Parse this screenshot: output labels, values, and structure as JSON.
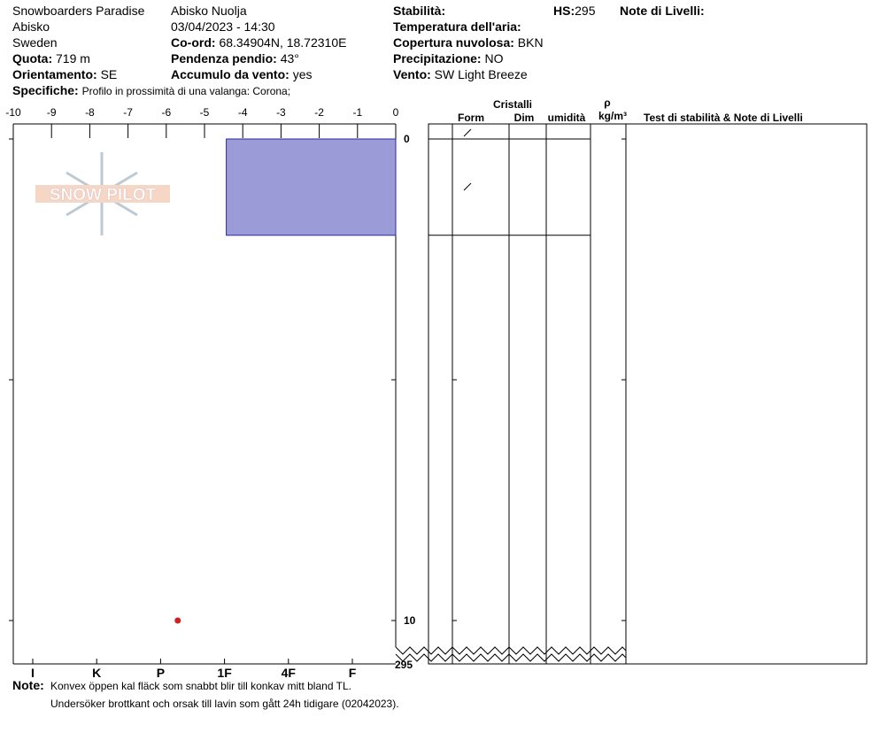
{
  "header": {
    "operation": "Snowboarders Paradise",
    "location": "Abisko",
    "country": "Sweden",
    "site": "Abisko Nuolja",
    "datetime": "03/04/2023 - 14:30",
    "coord": {
      "label": "Co-ord:",
      "value": "68.34904N, 18.72310E"
    },
    "elevation": {
      "label": "Quota:",
      "value": "719 m"
    },
    "slope": {
      "label": "Pendenza pendio:",
      "value": "43°"
    },
    "aspect": {
      "label": "Orientamento:",
      "value": "SE"
    },
    "wind_loading": {
      "label": "Accumulo da vento:",
      "value": "yes"
    },
    "stability": {
      "label": "Stabilità:"
    },
    "hs": {
      "label": "HS:",
      "value": "295"
    },
    "layer_notes": {
      "label": "Note di Livelli:"
    },
    "air_temp": {
      "label": "Temperatura dell'aria:"
    },
    "sky": {
      "label": "Copertura nuvolosa:",
      "value": "BKN"
    },
    "precip": {
      "label": "Precipitazione:",
      "value": "NO"
    },
    "wind": {
      "label": "Vento:",
      "value": "SW Light Breeze"
    },
    "specifics": {
      "label": "Specifiche:",
      "value": "Profilo in prossimità di una valanga: Corona;"
    }
  },
  "logo": "SNOW PILOT",
  "table_headers": {
    "crystals": "Cristalli",
    "form": "Form",
    "size": "Dim",
    "moisture": "umidità",
    "rho": "ρ",
    "density_unit": "kg/m³",
    "tests": "Test di stabilità & Note di Livelli"
  },
  "notes": {
    "label": "Note:",
    "lines": [
      "Konvex öppen kal fläck som snabbt blir till konkav mitt bland TL.",
      "Undersöker brottkant och orsak till lavin som gått 24h tidigare (02042023)."
    ]
  },
  "chart_data": {
    "type": "snow-profile",
    "xlim": [
      -10,
      0
    ],
    "xticks": [
      -10,
      -9,
      -8,
      -7,
      -6,
      -5,
      -4,
      -3,
      -2,
      -1,
      0
    ],
    "ylim": [
      0,
      10
    ],
    "yticks": [
      0,
      10
    ],
    "yminorticks": [
      5
    ],
    "hardness": [
      "I",
      "K",
      "P",
      "1F",
      "4F",
      "F"
    ],
    "layers": [
      {
        "top": 0,
        "bottom": 2,
        "hardness": "1F",
        "color": "#9b9bd7"
      }
    ],
    "temperatures": [
      {
        "depth": 10,
        "temp": -5.7,
        "color": "#cc2222"
      }
    ]
  }
}
